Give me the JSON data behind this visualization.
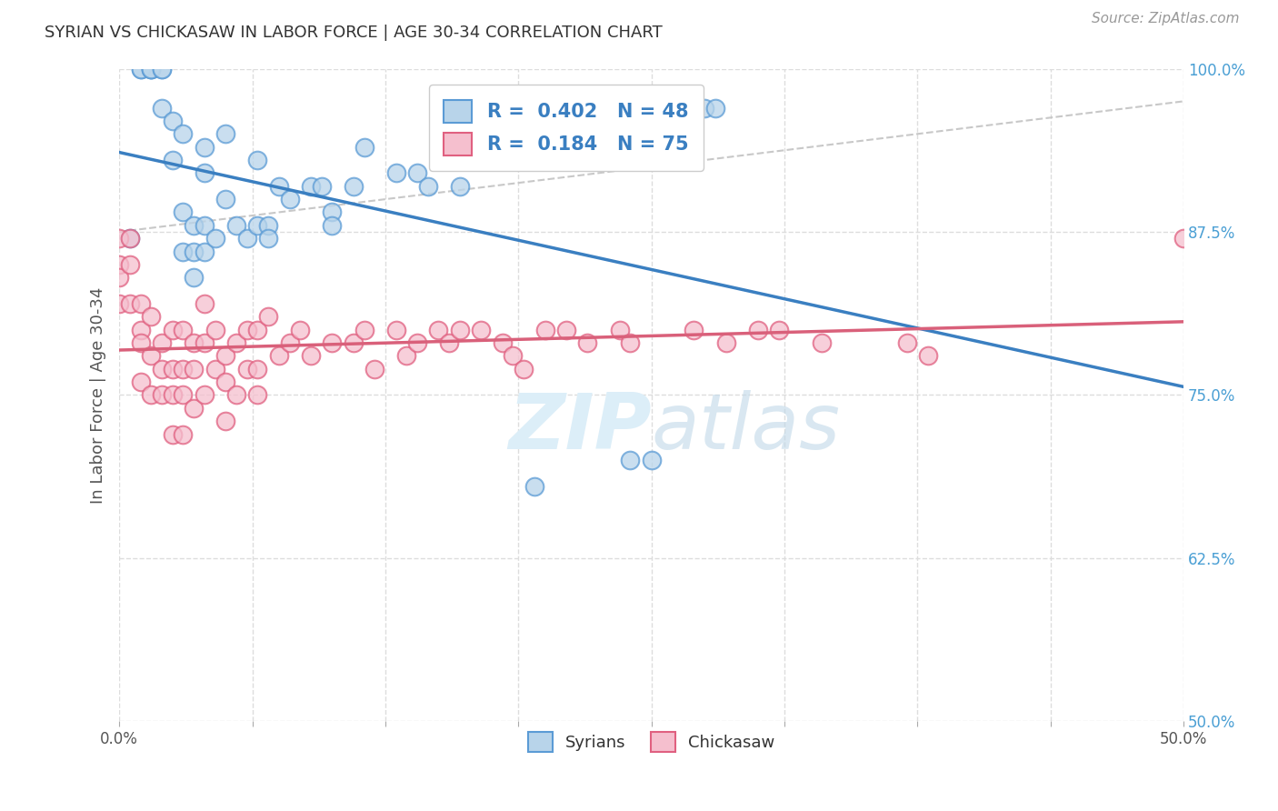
{
  "title": "SYRIAN VS CHICKASAW IN LABOR FORCE | AGE 30-34 CORRELATION CHART",
  "source_text": "Source: ZipAtlas.com",
  "ylabel": "In Labor Force | Age 30-34",
  "xlim": [
    0.0,
    0.5
  ],
  "ylim": [
    0.5,
    1.0
  ],
  "xtick_positions": [
    0.0,
    0.0625,
    0.125,
    0.1875,
    0.25,
    0.3125,
    0.375,
    0.4375,
    0.5
  ],
  "xtick_labels_show": {
    "0.0": "0.0%",
    "0.50": "50.0%"
  },
  "ytick_positions": [
    0.5,
    0.625,
    0.75,
    0.875,
    1.0
  ],
  "ytick_labels": [
    "50.0%",
    "62.5%",
    "75.0%",
    "87.5%",
    "100.0%"
  ],
  "r_syrian": 0.402,
  "n_syrian": 48,
  "r_chickasaw": 0.184,
  "n_chickasaw": 75,
  "syrian_fill": "#b8d4ea",
  "syrian_edge": "#5b9bd5",
  "chickasaw_fill": "#f5bfce",
  "chickasaw_edge": "#e06080",
  "syrian_line_color": "#3a7fc1",
  "chickasaw_line_color": "#d9607a",
  "diagonal_color": "#c8c8c8",
  "watermark_color": "#dceef8",
  "background_color": "#ffffff",
  "grid_color": "#dddddd",
  "title_color": "#333333",
  "source_color": "#999999",
  "ylabel_color": "#555555",
  "ytick_color": "#4a9fd4",
  "xtick_color": "#555555",
  "legend_text_color": "#3a7fc1",
  "bottom_legend_color": "#333333",
  "syrian_x": [
    0.005,
    0.01,
    0.01,
    0.015,
    0.015,
    0.015,
    0.02,
    0.02,
    0.02,
    0.025,
    0.025,
    0.03,
    0.03,
    0.03,
    0.035,
    0.035,
    0.035,
    0.04,
    0.04,
    0.04,
    0.04,
    0.045,
    0.05,
    0.05,
    0.055,
    0.06,
    0.065,
    0.065,
    0.07,
    0.07,
    0.075,
    0.08,
    0.09,
    0.095,
    0.1,
    0.1,
    0.11,
    0.115,
    0.13,
    0.14,
    0.145,
    0.16,
    0.195,
    0.24,
    0.25,
    0.26,
    0.275,
    0.28
  ],
  "syrian_y": [
    0.87,
    1.0,
    1.0,
    1.0,
    1.0,
    1.0,
    1.0,
    1.0,
    0.97,
    0.96,
    0.93,
    0.95,
    0.89,
    0.86,
    0.88,
    0.86,
    0.84,
    0.88,
    0.86,
    0.92,
    0.94,
    0.87,
    0.9,
    0.95,
    0.88,
    0.87,
    0.93,
    0.88,
    0.88,
    0.87,
    0.91,
    0.9,
    0.91,
    0.91,
    0.89,
    0.88,
    0.91,
    0.94,
    0.92,
    0.92,
    0.91,
    0.91,
    0.68,
    0.7,
    0.7,
    0.95,
    0.97,
    0.97
  ],
  "chickasaw_x": [
    0.0,
    0.0,
    0.0,
    0.0,
    0.005,
    0.005,
    0.005,
    0.01,
    0.01,
    0.01,
    0.01,
    0.015,
    0.015,
    0.015,
    0.02,
    0.02,
    0.02,
    0.025,
    0.025,
    0.025,
    0.025,
    0.03,
    0.03,
    0.03,
    0.03,
    0.035,
    0.035,
    0.035,
    0.04,
    0.04,
    0.04,
    0.045,
    0.045,
    0.05,
    0.05,
    0.05,
    0.055,
    0.055,
    0.06,
    0.06,
    0.065,
    0.065,
    0.065,
    0.07,
    0.075,
    0.08,
    0.085,
    0.09,
    0.1,
    0.11,
    0.115,
    0.12,
    0.13,
    0.135,
    0.14,
    0.15,
    0.155,
    0.16,
    0.17,
    0.18,
    0.185,
    0.19,
    0.2,
    0.21,
    0.22,
    0.235,
    0.24,
    0.27,
    0.285,
    0.3,
    0.31,
    0.33,
    0.37,
    0.38,
    0.5
  ],
  "chickasaw_y": [
    0.87,
    0.85,
    0.84,
    0.82,
    0.87,
    0.85,
    0.82,
    0.82,
    0.8,
    0.79,
    0.76,
    0.81,
    0.78,
    0.75,
    0.79,
    0.77,
    0.75,
    0.8,
    0.77,
    0.75,
    0.72,
    0.8,
    0.77,
    0.75,
    0.72,
    0.79,
    0.77,
    0.74,
    0.82,
    0.79,
    0.75,
    0.8,
    0.77,
    0.78,
    0.76,
    0.73,
    0.79,
    0.75,
    0.8,
    0.77,
    0.8,
    0.77,
    0.75,
    0.81,
    0.78,
    0.79,
    0.8,
    0.78,
    0.79,
    0.79,
    0.8,
    0.77,
    0.8,
    0.78,
    0.79,
    0.8,
    0.79,
    0.8,
    0.8,
    0.79,
    0.78,
    0.77,
    0.8,
    0.8,
    0.79,
    0.8,
    0.79,
    0.8,
    0.79,
    0.8,
    0.8,
    0.79,
    0.79,
    0.78,
    0.87
  ]
}
